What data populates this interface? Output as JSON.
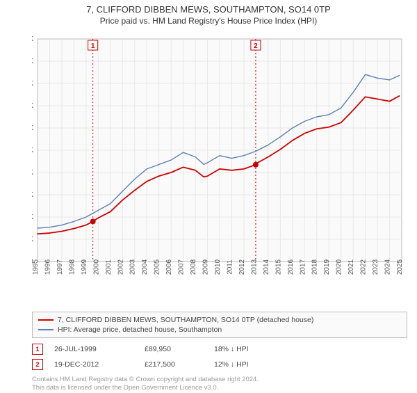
{
  "title": {
    "line1": "7, CLIFFORD DIBBEN MEWS, SOUTHAMPTON, SO14 0TP",
    "line2": "Price paid vs. HM Land Registry's House Price Index (HPI)"
  },
  "chart": {
    "type": "line",
    "background_color": "#fafafa",
    "border_color": "#bbbbbb",
    "grid_color": "#e8e8e8",
    "x": {
      "min": 1995,
      "max": 2025,
      "tick_step": 1,
      "label_color": "#555555",
      "label_fontsize": 10
    },
    "y": {
      "min": 0,
      "max": 500000,
      "tick_step": 50000,
      "tick_format_prefix": "£",
      "tick_format_suffix": "K",
      "label_color": "#555555",
      "label_fontsize": 10
    },
    "series": [
      {
        "id": "price_paid",
        "label": "7, CLIFFORD DIBBEN MEWS, SOUTHAMPTON, SO14 0TP (detached house)",
        "color": "#cc0000",
        "line_width": 1.8,
        "points": [
          [
            1995,
            62000
          ],
          [
            1996,
            64000
          ],
          [
            1997,
            68000
          ],
          [
            1998,
            74000
          ],
          [
            1999,
            82000
          ],
          [
            1999.56,
            89950
          ],
          [
            2000,
            98000
          ],
          [
            2001,
            112000
          ],
          [
            2002,
            138000
          ],
          [
            2003,
            160000
          ],
          [
            2004,
            180000
          ],
          [
            2005,
            192000
          ],
          [
            2006,
            200000
          ],
          [
            2007,
            212000
          ],
          [
            2008,
            205000
          ],
          [
            2008.7,
            190000
          ],
          [
            2009,
            192000
          ],
          [
            2010,
            208000
          ],
          [
            2011,
            205000
          ],
          [
            2012,
            208000
          ],
          [
            2012.97,
            217500
          ],
          [
            2013,
            220000
          ],
          [
            2014,
            235000
          ],
          [
            2015,
            252000
          ],
          [
            2016,
            272000
          ],
          [
            2017,
            288000
          ],
          [
            2018,
            298000
          ],
          [
            2019,
            302000
          ],
          [
            2020,
            312000
          ],
          [
            2021,
            340000
          ],
          [
            2022,
            370000
          ],
          [
            2023,
            365000
          ],
          [
            2024,
            360000
          ],
          [
            2024.8,
            372000
          ]
        ]
      },
      {
        "id": "hpi",
        "label": "HPI: Average price, detached house, Southampton",
        "color": "#5b7fb7",
        "line_width": 1.4,
        "points": [
          [
            1995,
            75000
          ],
          [
            1996,
            77000
          ],
          [
            1997,
            82000
          ],
          [
            1998,
            90000
          ],
          [
            1999,
            100000
          ],
          [
            2000,
            115000
          ],
          [
            2001,
            130000
          ],
          [
            2002,
            158000
          ],
          [
            2003,
            185000
          ],
          [
            2004,
            208000
          ],
          [
            2005,
            218000
          ],
          [
            2006,
            228000
          ],
          [
            2007,
            245000
          ],
          [
            2008,
            235000
          ],
          [
            2008.7,
            218000
          ],
          [
            2009,
            222000
          ],
          [
            2010,
            238000
          ],
          [
            2011,
            232000
          ],
          [
            2012,
            238000
          ],
          [
            2013,
            248000
          ],
          [
            2014,
            262000
          ],
          [
            2015,
            280000
          ],
          [
            2016,
            300000
          ],
          [
            2017,
            315000
          ],
          [
            2018,
            325000
          ],
          [
            2019,
            330000
          ],
          [
            2020,
            345000
          ],
          [
            2021,
            380000
          ],
          [
            2022,
            420000
          ],
          [
            2023,
            412000
          ],
          [
            2024,
            408000
          ],
          [
            2024.8,
            418000
          ]
        ]
      }
    ],
    "sale_markers": [
      {
        "n": "1",
        "x": 1999.56,
        "y": 89950,
        "color": "#cc0000"
      },
      {
        "n": "2",
        "x": 2012.97,
        "y": 217500,
        "color": "#cc0000"
      }
    ]
  },
  "legend": {
    "series": [
      {
        "color": "#cc0000",
        "label": "7, CLIFFORD DIBBEN MEWS, SOUTHAMPTON, SO14 0TP (detached house)"
      },
      {
        "color": "#5b7fb7",
        "label": "HPI: Average price, detached house, Southampton"
      }
    ]
  },
  "sales": [
    {
      "n": "1",
      "color": "#cc0000",
      "date": "26-JUL-1999",
      "price": "£89,950",
      "delta": "18% ↓ HPI"
    },
    {
      "n": "2",
      "color": "#cc0000",
      "date": "19-DEC-2012",
      "price": "£217,500",
      "delta": "12% ↓ HPI"
    }
  ],
  "footer": {
    "line1": "Contains HM Land Registry data © Crown copyright and database right 2024.",
    "line2": "This data is licensed under the Open Government Licence v3.0."
  }
}
